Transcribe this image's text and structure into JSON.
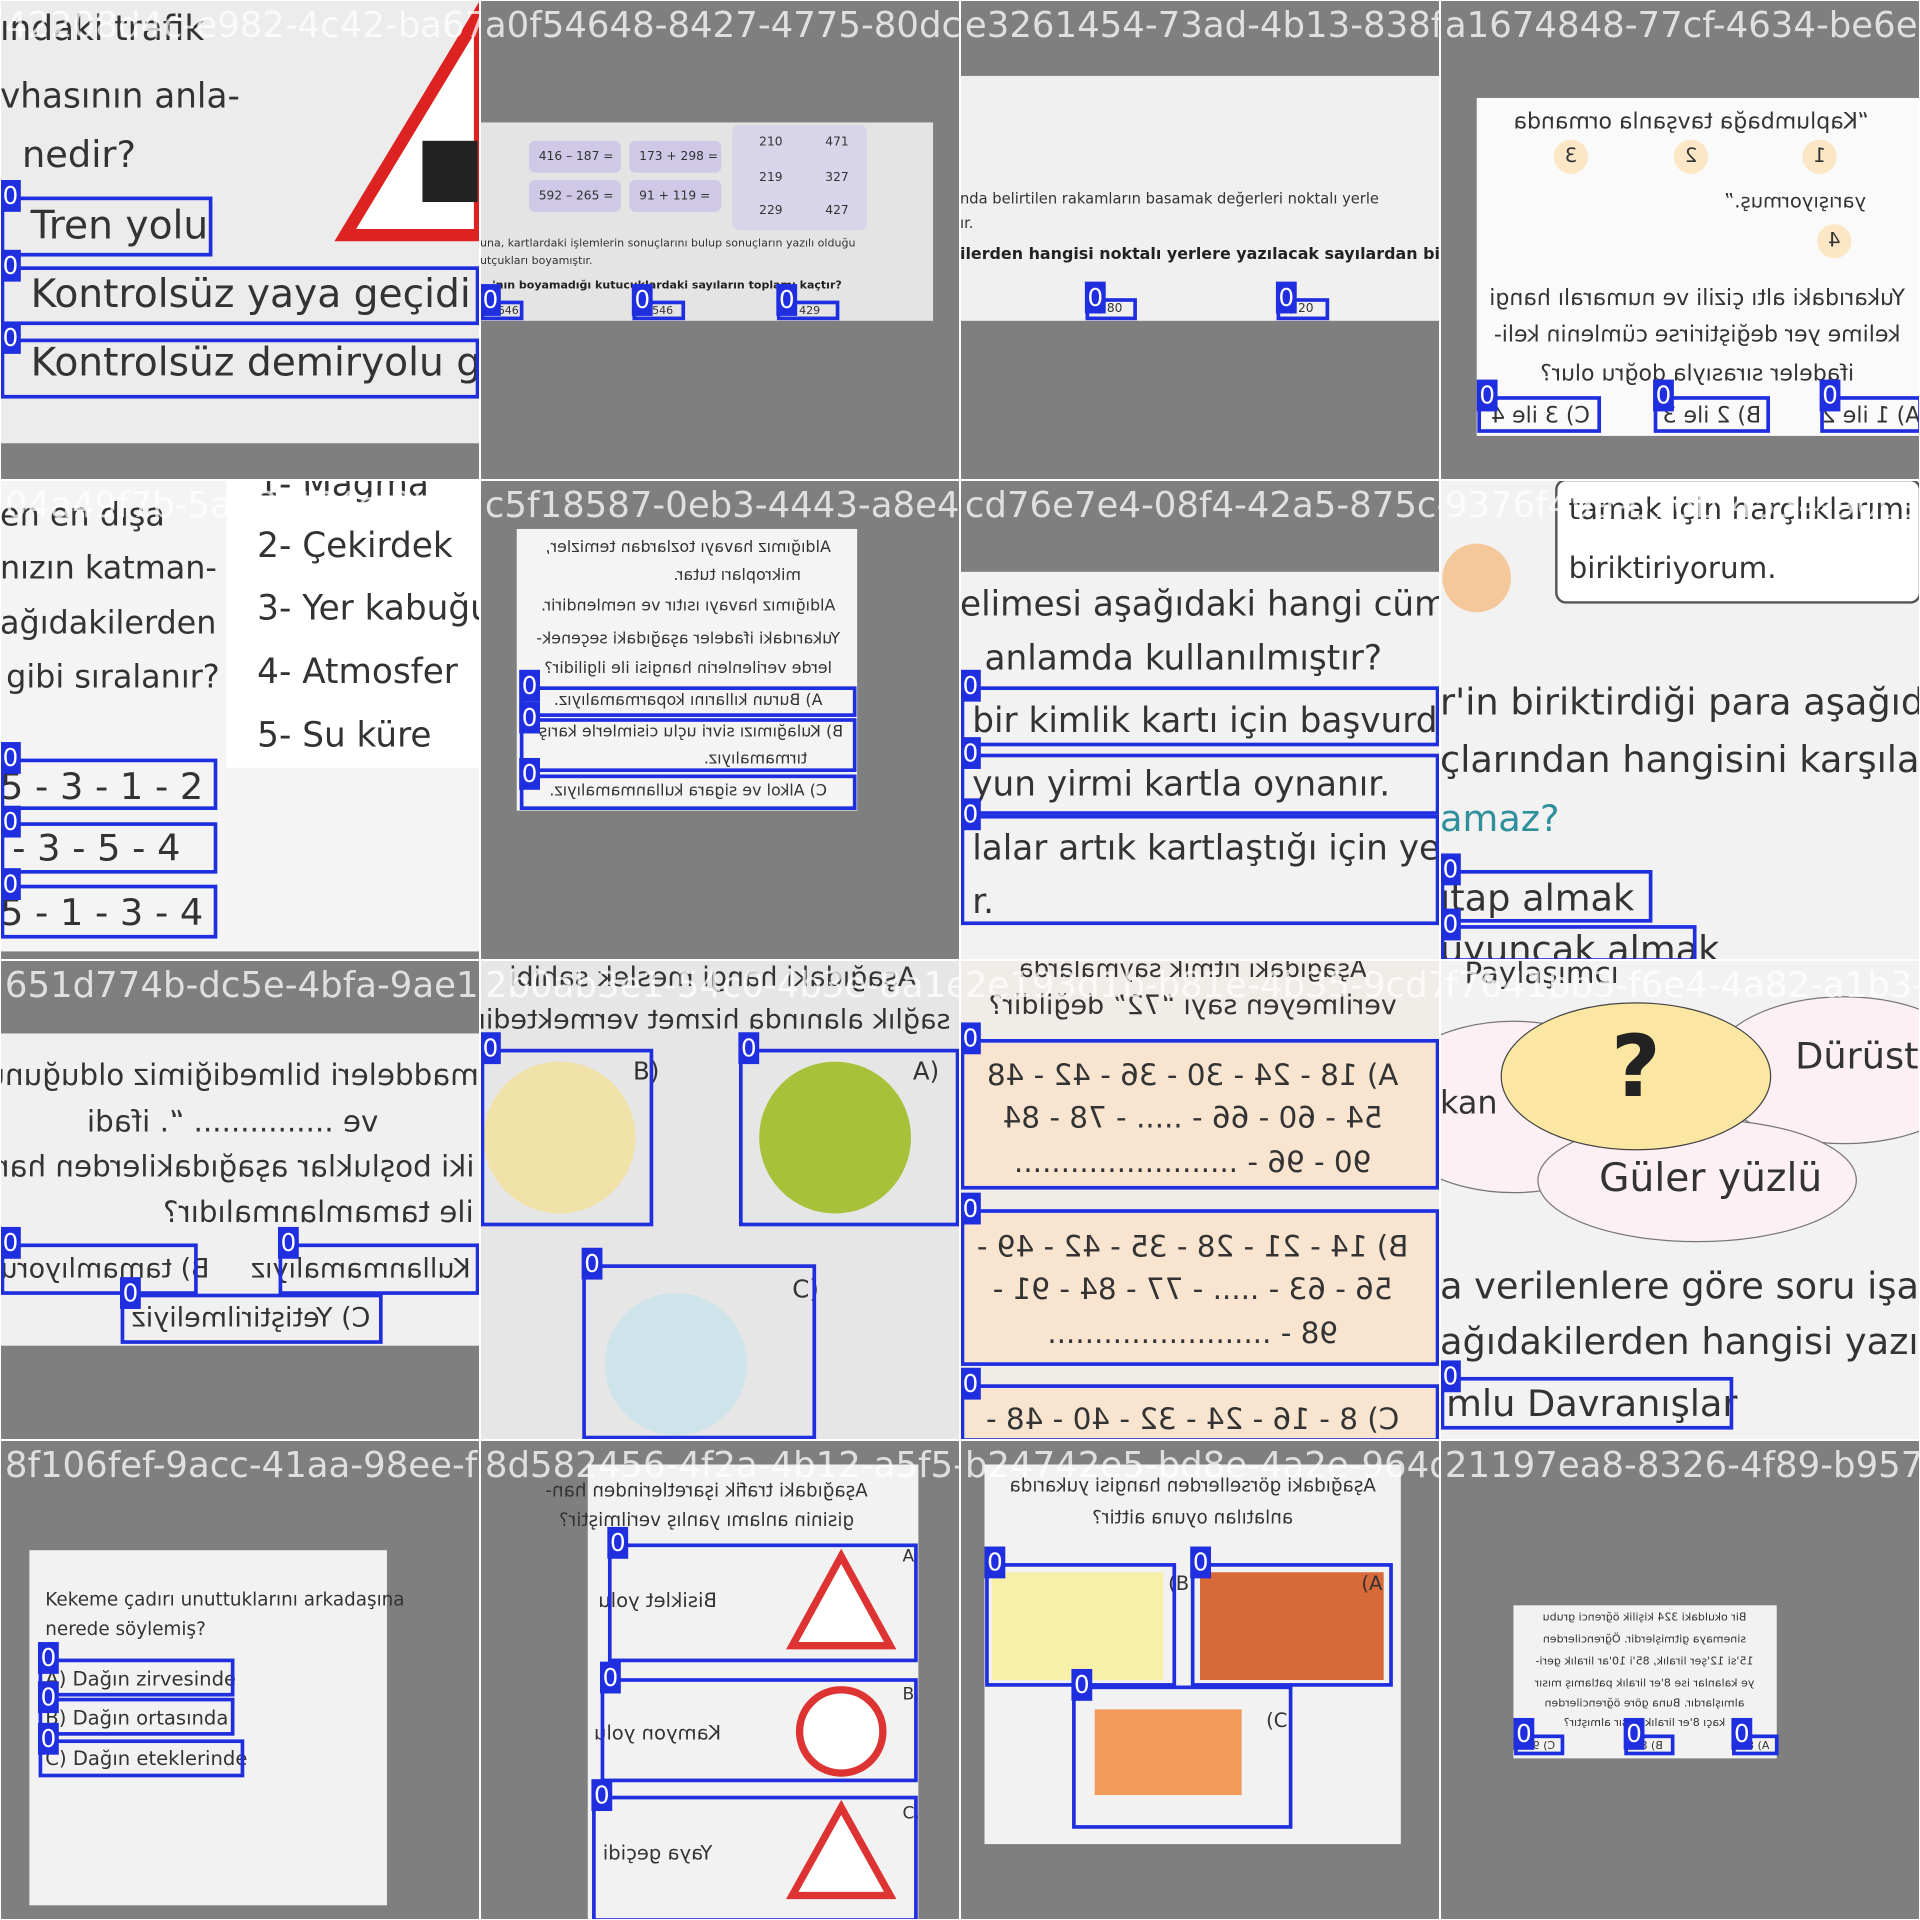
{
  "tiles": [
    {
      "filename": "42208d4c-e982-4c42-ba67-",
      "texts": [
        "ındaki trafik",
        "vhasının anla-",
        "nedir?",
        "Tren yolu",
        "Kontrolsüz yaya geçidi",
        "Kontrolsüz demiryolu ge"
      ],
      "boxes": [
        "0",
        "0",
        "0"
      ]
    },
    {
      "filename": "a0f54648-8427-4775-80dc-7e",
      "texts": [
        "416 – 187 =",
        "173 + 298 =",
        "592 – 265 =",
        "91 + 119 =",
        "210",
        "471",
        "219",
        "327",
        "229",
        "427",
        "una, kartlardaki işlemlerin sonuçlarını bulup sonuçların yazılı olduğu",
        "utçukları boyamıştır.",
        "'nın boyamadığı kutucuklardaki sayıların toplamı kaçtır?",
        "A) 646",
        "B) 546",
        "C) 429"
      ],
      "boxes": [
        "0",
        "0",
        "0"
      ]
    },
    {
      "filename": "e3261454-73ad-4b13-838f-2a",
      "texts": [
        "nda belirtilen rakamların basamak değerleri noktalı yerle",
        "ır.",
        "ilerden hangisi noktalı yerlere yazılacak sayılardan biri değ",
        "B) 80",
        "C) 20"
      ],
      "boxes": [
        "0",
        "0"
      ]
    },
    {
      "filename": "a1674848-77cf-4634-be6e-",
      "texts": [
        "“Kaplumbağa tavşanla ormanda",
        "1",
        "2",
        "3",
        "yarışıyormuş.”",
        "4",
        "Yukarıdaki altı çizili ve numaralı hangi",
        "kelime yer değiştirirse cümlenin keli-",
        "ifadeler sırasıyla doğru olur?",
        "A) 1 ile 2",
        "B) 2 ile 3",
        "C) 3 ile 4"
      ],
      "boxes": [
        "0",
        "0",
        "0"
      ]
    },
    {
      "filename": "04a49f7b-5a78-474c-9ba8-7",
      "texts": [
        "en en dışa",
        "nızın katman-",
        "ağıdakilerden",
        "gibi sıralanır?",
        "1- Mağma",
        "2- Çekirdek",
        "3- Yer kabuğu",
        "4- Atmosfer",
        "5- Su küre",
        "5 - 3 - 1 - 2",
        "- 3 - 5 - 4",
        "5 - 1 - 3 - 4"
      ],
      "boxes": [
        "0",
        "0",
        "0"
      ]
    },
    {
      "filename": "c5f18587-0eb3-4443-a8e4-6",
      "texts": [
        "Aldığımız havayı tozlardan temizler,",
        "mikropları tutar.",
        "Aldığımız havayı ısıtır ve nemlendirir.",
        "Yukarıdaki ifadeler aşağıdaki seçenek-",
        "lerde verilenlerin hangisi ile ilgilidir?",
        "A) Burun kıllarını koparmamalıyız.",
        "B) Kulağımızı sivri uçlu cisimlerle karış-",
        "tırmamalıyız.",
        "C) Alkol ve sigara kullanmamalıyız."
      ],
      "boxes": [
        "0",
        "0",
        "0"
      ]
    },
    {
      "filename": "cd76e7e4-08f4-42a5-875c-6",
      "texts": [
        "elimesi aşağıdaki hangi cümle",
        "anlamda kullanılmıştır?",
        "bir kimlik kartı için başvurdu",
        "yun yirmi kartla oynanır.",
        "lalar artık kartlaştığı için yen",
        "r."
      ],
      "boxes": [
        "0",
        "0",
        "0"
      ]
    },
    {
      "filename": "9376f49a-b76b-4554-90c9-",
      "texts": [
        "tamak için harçlıklarımı",
        "biriktiriyorum.",
        "r'in biriktirdiği para aşağıd",
        "çlarından hangisini karşılam",
        "amaz?",
        "ıtap almak",
        "uyuncak almak"
      ],
      "boxes": [
        "0",
        "0"
      ]
    },
    {
      "filename": "651d774b-dc5e-4bfa-9ae1-2",
      "texts": [
        "maddeleri bilmediğimiz olduğunu",
        "ve ............... “. ifadi",
        "iki boşluklar aşağıdakilerden han",
        "ile tamamlanmalıdır?",
        "B) tamamlıyoruz",
        "A) Kullanmamalıyız",
        "C) Yetiştirilmeliyiz"
      ],
      "boxes": [
        "0",
        "0",
        "0"
      ]
    },
    {
      "filename": "2b0ab3e1-54c0-4b3e-8a1e-2",
      "texts": [
        "Aşağıdaki hangi meslek sahibi",
        "sağlık alanında hizmet vermektedir",
        "B)",
        "A)",
        "C)"
      ],
      "boxes": [
        "0",
        "0",
        "0"
      ]
    },
    {
      "filename": "2e193d1b-b81e-4b35-9cd7-bf",
      "texts": [
        "Aşağıdaki ritmik saymalarda",
        "verilmeyen sayı “72” değildir?",
        "A) 18 - 24 - 30 - 36 - 42 - 48",
        "54 - 60 - 66 - ..... - 78 - 84",
        "90 - 96 - ........................",
        "B) 14 - 21 - 28 - 35 - 42 - 49 -",
        "56 - 63 - ..... - 77 - 84 - 91 -",
        "98 - ........................",
        "C) 8 - 16 - 24 - 32 - 40 - 48 -"
      ],
      "boxes": [
        "0",
        "0",
        "0"
      ]
    },
    {
      "filename": "f7641bb3-f6e4-4a82-a1b3-6",
      "texts": [
        "Paylaşımcı",
        "?",
        "Dürüst",
        "kan",
        "Güler yüzlü",
        "a verilenlere göre soru işareti",
        "ağıdakilerden hangisi yazılab",
        "mlu Davranışlar"
      ],
      "boxes": [
        "0"
      ]
    },
    {
      "filename": "8f106fef-9acc-41aa-98ee-fc",
      "texts": [
        "Kekeme çadırı unuttuklarını arkadaşına",
        "nerede söylemiş?",
        "A) Dağın zirvesinde",
        "B) Dağın ortasında",
        "C) Dağın eteklerinde"
      ],
      "boxes": [
        "0",
        "0",
        "0"
      ]
    },
    {
      "filename": "8d582456-4f2a-4b12-a5f5-0",
      "texts": [
        "Aşağıdaki trafik işaretlerinden han-",
        "gisinin anlamı yanlış verilmiştir?",
        "A.",
        "Bisiklet yolu",
        "B.",
        "Kamyon yolu",
        "C.",
        "Yaya geçidi"
      ],
      "boxes": [
        "0",
        "0",
        "0"
      ]
    },
    {
      "filename": "b24742e5-bd8e-4a2e-964d-5",
      "texts": [
        "Aşağıdaki görsellerden hangisi yukarıda",
        "anlatılan oyuna aittir?",
        "(B",
        "(A",
        "(C"
      ],
      "boxes": [
        "0",
        "0",
        "0"
      ]
    },
    {
      "filename": "21197ea8-8326-4f89-b957-7",
      "texts": [
        "Bir okuldaki 324 kişilik öğrenci grubu",
        "sinemaya gitmişlerdir. Öğrencilerden",
        "15'si 12'şer liralık, 85'i 10'ar liralık geri-",
        "ye kalanlar ise 8'er liralık patlamış mısır",
        "almışlardır. Buna göre öğrencilerden",
        "kaçı 8'er liralık mısır almıştır?",
        "C) 98",
        "B) 86",
        "A) 82"
      ],
      "boxes": [
        "0",
        "0",
        "0"
      ]
    }
  ]
}
